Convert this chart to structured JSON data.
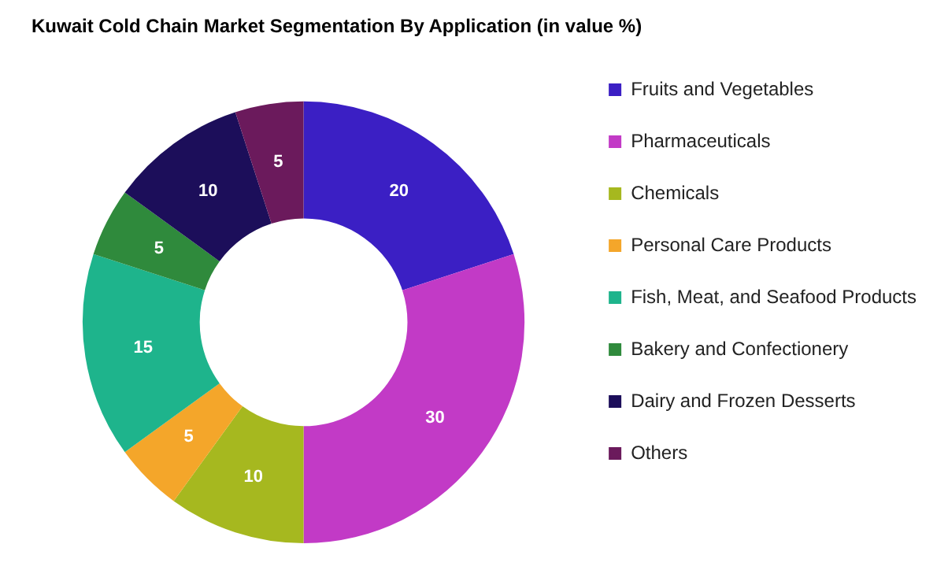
{
  "chart_data": {
    "type": "donut",
    "title": "Kuwait Cold Chain Market Segmentation By Application (in value %)",
    "categories": [
      "Fruits and Vegetables",
      "Pharmaceuticals",
      "Chemicals",
      "Personal Care Products",
      "Fish, Meat, and Seafood Products",
      "Bakery and Confectionery",
      "Dairy and Frozen Desserts",
      "Others"
    ],
    "values": [
      20,
      30,
      10,
      5,
      15,
      5,
      10,
      5
    ],
    "colors": [
      "#3b1fc4",
      "#c23ac6",
      "#a6b81f",
      "#f4a62a",
      "#1eb48c",
      "#2f8a3c",
      "#1c0e5a",
      "#6b1a5c"
    ],
    "legend": "right",
    "data_labels": true
  }
}
